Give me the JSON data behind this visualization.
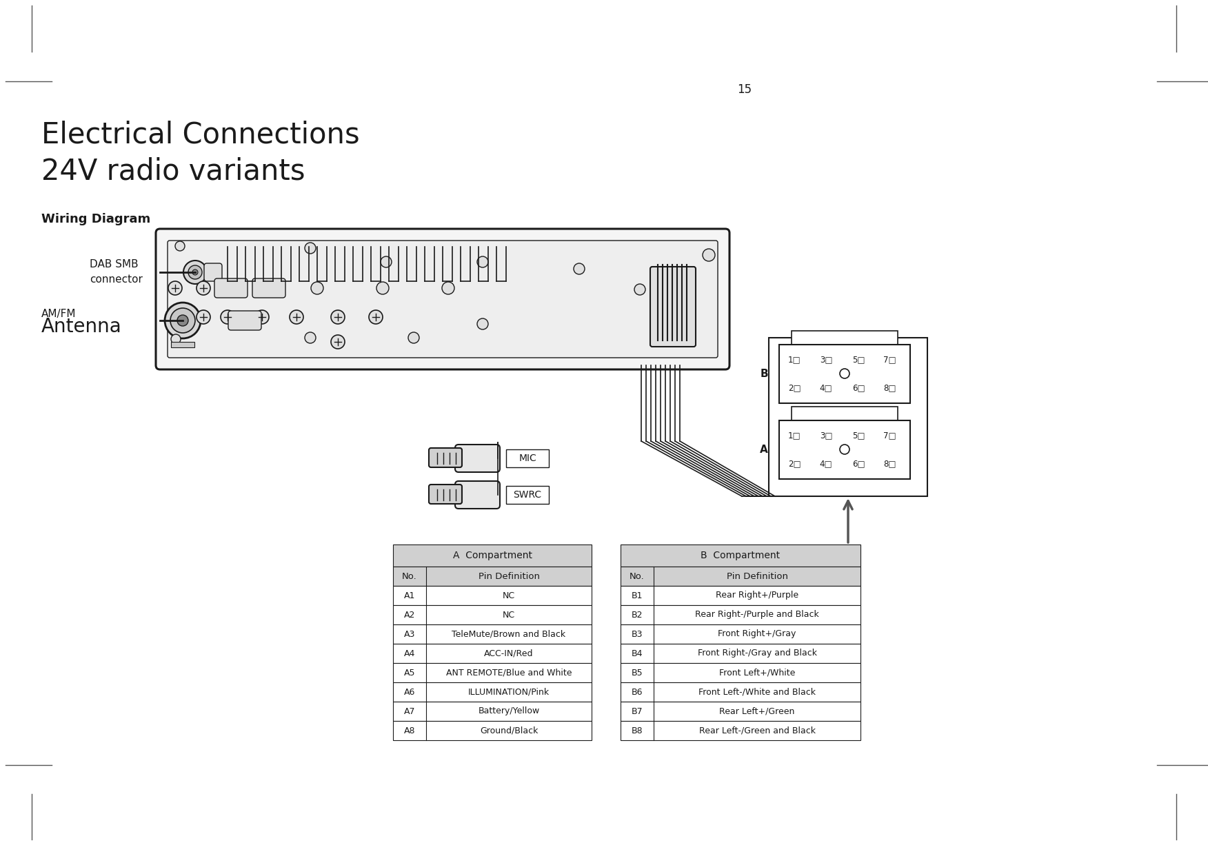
{
  "title_line1": "Electrical Connections",
  "title_line2": "24V radio variants",
  "page_number": "15",
  "wiring_diagram_label": "Wiring Diagram",
  "label_dab_smb_1": "DAB SMB",
  "label_dab_smb_2": "connector",
  "label_amfm": "AM/FM",
  "label_antenna": "Antenna",
  "label_mic": "MIC",
  "label_swrc": "SWRC",
  "label_B": "B",
  "label_A": "A",
  "compartment_A_title": "A  Compartment",
  "compartment_B_title": "B  Compartment",
  "col_no": "No.",
  "col_pin": "Pin Definition",
  "rows_A": [
    [
      "A1",
      "NC"
    ],
    [
      "A2",
      "NC"
    ],
    [
      "A3",
      "TeleMute/Brown and Black"
    ],
    [
      "A4",
      "ACC-IN/Red"
    ],
    [
      "A5",
      "ANT REMOTE/Blue and White"
    ],
    [
      "A6",
      "ILLUMINATION/Pink"
    ],
    [
      "A7",
      "Battery/Yellow"
    ],
    [
      "A8",
      "Ground/Black"
    ]
  ],
  "rows_B": [
    [
      "B1",
      "Rear Right+/Purple"
    ],
    [
      "B2",
      "Rear Right-/Purple and Black"
    ],
    [
      "B3",
      "Front Right+/Gray"
    ],
    [
      "B4",
      "Front Right-/Gray and Black"
    ],
    [
      "B5",
      "Front Left+/White"
    ],
    [
      "B6",
      "Front Left-/White and Black"
    ],
    [
      "B7",
      "Rear Left+/Green"
    ],
    [
      "B8",
      "Rear Left-/Green and Black"
    ]
  ],
  "bg_color": "#ffffff",
  "text_color": "#1a1a1a",
  "line_color": "#1a1a1a",
  "table_header_bg": "#d0d0d0",
  "gray_bg": "#e8e8e8"
}
